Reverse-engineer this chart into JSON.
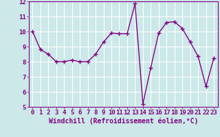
{
  "x": [
    0,
    1,
    2,
    3,
    4,
    5,
    6,
    7,
    8,
    9,
    10,
    11,
    12,
    13,
    14,
    15,
    16,
    17,
    18,
    19,
    20,
    21,
    22,
    23
  ],
  "y": [
    10.0,
    8.8,
    8.5,
    8.0,
    8.0,
    8.1,
    8.0,
    8.0,
    8.5,
    9.3,
    9.9,
    9.85,
    9.85,
    11.85,
    5.2,
    7.6,
    9.9,
    10.6,
    10.65,
    10.2,
    9.3,
    8.35,
    6.35,
    8.25
  ],
  "line_color": "#800080",
  "marker": "+",
  "marker_size": 4,
  "bg_color": "#cce8e8",
  "grid_color": "#ffffff",
  "xlabel": "Windchill (Refroidissement éolien,°C)",
  "xlabel_color": "#800080",
  "ylim": [
    5,
    12
  ],
  "xlim_min": -0.5,
  "xlim_max": 23.5,
  "yticks": [
    5,
    6,
    7,
    8,
    9,
    10,
    11,
    12
  ],
  "xticks": [
    0,
    1,
    2,
    3,
    4,
    5,
    6,
    7,
    8,
    9,
    10,
    11,
    12,
    13,
    14,
    15,
    16,
    17,
    18,
    19,
    20,
    21,
    22,
    23
  ],
  "tick_color": "#800080",
  "tick_fontsize": 6.5,
  "xlabel_fontsize": 7,
  "spine_color": "#800080",
  "linewidth": 1.0
}
